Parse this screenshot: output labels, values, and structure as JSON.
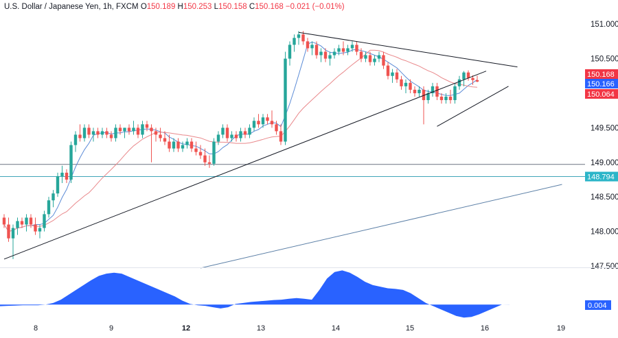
{
  "header": {
    "symbol": "U.S. Dollar / Japanese Yen, 1h, FXCM",
    "o_label": "O",
    "o_value": "150.189",
    "h_label": "H",
    "h_value": "150.253",
    "l_label": "L",
    "l_value": "150.158",
    "c_label": "C",
    "c_value": "150.168",
    "change": "−0.021 (−0.01%)"
  },
  "colors": {
    "up": "#26a69a",
    "down": "#ef5350",
    "ma_fast": "#5b8bd6",
    "ma_slow": "#e9888b",
    "level_line": "#6b7280",
    "level_line2": "#3fa5b8",
    "oscillator": "#2962ff",
    "tag_red": "#f23645",
    "tag_blue": "#2962ff",
    "tag_cyan": "#2cb5c8"
  },
  "chart_data": {
    "type": "candlestick",
    "price_axis": {
      "ticks": [
        "151.000",
        "150.500",
        "150.000",
        "149.500",
        "149.000",
        "148.500",
        "148.000",
        "147.500"
      ],
      "range": [
        147.5,
        151.15
      ]
    },
    "time_axis": {
      "ticks": [
        {
          "label": "8",
          "bold": false
        },
        {
          "label": "9",
          "bold": false
        },
        {
          "label": "12",
          "bold": true
        },
        {
          "label": "13",
          "bold": false
        },
        {
          "label": "14",
          "bold": false
        },
        {
          "label": "15",
          "bold": false
        },
        {
          "label": "16",
          "bold": false
        },
        {
          "label": "19",
          "bold": false
        }
      ]
    },
    "price_tags": [
      {
        "text": "150.168",
        "price": 150.168,
        "color": "tag_red"
      },
      {
        "text": "150.166",
        "price": 150.166,
        "color": "tag_blue"
      },
      {
        "text": "150.064",
        "price": 150.064,
        "color": "tag_red"
      },
      {
        "text": "148.794",
        "price": 148.794,
        "color": "tag_cyan"
      }
    ],
    "horizontal_levels": [
      {
        "price": 148.97,
        "color": "level_line"
      },
      {
        "price": 148.794,
        "color": "level_line2"
      }
    ],
    "oscillator": {
      "value_label": "0.004",
      "values": [
        -0.05,
        -0.04,
        -0.03,
        -0.02,
        -0.02,
        -0.02,
        0,
        0.05,
        0.15,
        0.3,
        0.45,
        0.6,
        0.75,
        0.88,
        0.95,
        0.98,
        0.95,
        0.85,
        0.75,
        0.65,
        0.55,
        0.45,
        0.35,
        0.25,
        0.12,
        0.02,
        -0.02,
        -0.04,
        -0.08,
        -0.12,
        -0.08,
        0.02,
        0.05,
        0.08,
        0.1,
        0.12,
        0.14,
        0.15,
        0.18,
        0.2,
        0.18,
        0.15,
        0.45,
        0.8,
        1.0,
        1.05,
        0.98,
        0.85,
        0.7,
        0.6,
        0.55,
        0.5,
        0.48,
        0.45,
        0.35,
        0.2,
        0.05,
        -0.05,
        -0.15,
        -0.25,
        -0.35,
        -0.4,
        -0.38,
        -0.3,
        -0.2,
        -0.1,
        0,
        0.004
      ],
      "range": [
        -0.5,
        1.1
      ]
    },
    "candles": [
      [
        148.2,
        148.25,
        148.05,
        148.1
      ],
      [
        148.1,
        148.2,
        147.85,
        147.9
      ],
      [
        147.9,
        148.1,
        147.6,
        148.05
      ],
      [
        148.05,
        148.2,
        147.95,
        148.15
      ],
      [
        148.15,
        148.2,
        148.05,
        148.1
      ],
      [
        148.1,
        148.25,
        148.0,
        148.2
      ],
      [
        148.2,
        148.25,
        148.05,
        148.1
      ],
      [
        148.1,
        148.2,
        147.95,
        148.0
      ],
      [
        148.0,
        148.1,
        147.9,
        148.05
      ],
      [
        148.05,
        148.3,
        148.0,
        148.25
      ],
      [
        148.25,
        148.5,
        148.2,
        148.45
      ],
      [
        148.45,
        148.6,
        148.35,
        148.55
      ],
      [
        148.55,
        148.85,
        148.5,
        148.8
      ],
      [
        148.8,
        148.95,
        148.7,
        148.85
      ],
      [
        148.85,
        148.9,
        148.7,
        148.75
      ],
      [
        148.75,
        149.3,
        148.7,
        149.25
      ],
      [
        149.25,
        149.45,
        149.15,
        149.4
      ],
      [
        149.4,
        149.55,
        149.3,
        149.35
      ],
      [
        149.35,
        149.55,
        149.3,
        149.5
      ],
      [
        149.5,
        149.55,
        149.35,
        149.4
      ],
      [
        149.4,
        149.5,
        149.3,
        149.45
      ],
      [
        149.45,
        149.5,
        149.35,
        149.4
      ],
      [
        149.4,
        149.5,
        149.35,
        149.45
      ],
      [
        149.45,
        149.5,
        149.35,
        149.4
      ],
      [
        149.4,
        149.45,
        149.3,
        149.35
      ],
      [
        149.35,
        149.55,
        149.3,
        149.5
      ],
      [
        149.5,
        149.55,
        149.4,
        149.45
      ],
      [
        149.45,
        149.5,
        149.35,
        149.5
      ],
      [
        149.5,
        149.55,
        149.4,
        149.45
      ],
      [
        149.45,
        149.6,
        149.4,
        149.5
      ],
      [
        149.5,
        149.55,
        149.35,
        149.4
      ],
      [
        149.4,
        149.6,
        149.35,
        149.55
      ],
      [
        149.55,
        149.6,
        149.45,
        149.5
      ],
      [
        149.5,
        149.55,
        149.0,
        149.45
      ],
      [
        149.45,
        149.5,
        149.3,
        149.4
      ],
      [
        149.4,
        149.5,
        149.3,
        149.35
      ],
      [
        149.35,
        149.45,
        149.25,
        149.3
      ],
      [
        149.3,
        149.4,
        149.15,
        149.2
      ],
      [
        149.2,
        149.35,
        149.15,
        149.3
      ],
      [
        149.3,
        149.35,
        149.15,
        149.2
      ],
      [
        149.2,
        149.3,
        149.15,
        149.25
      ],
      [
        149.25,
        149.35,
        149.2,
        149.3
      ],
      [
        149.3,
        149.35,
        149.15,
        149.2
      ],
      [
        149.2,
        149.3,
        149.1,
        149.15
      ],
      [
        149.15,
        149.25,
        149.05,
        149.1
      ],
      [
        149.1,
        149.2,
        148.95,
        149.0
      ],
      [
        149.0,
        149.1,
        148.92,
        148.98
      ],
      [
        148.98,
        149.35,
        148.95,
        149.3
      ],
      [
        149.3,
        149.45,
        149.25,
        149.4
      ],
      [
        149.4,
        149.55,
        149.35,
        149.5
      ],
      [
        149.5,
        149.55,
        149.3,
        149.35
      ],
      [
        149.35,
        149.45,
        149.3,
        149.4
      ],
      [
        149.4,
        149.45,
        149.3,
        149.35
      ],
      [
        149.35,
        149.5,
        149.3,
        149.45
      ],
      [
        149.45,
        149.5,
        149.35,
        149.4
      ],
      [
        149.4,
        149.55,
        149.35,
        149.5
      ],
      [
        149.5,
        149.65,
        149.45,
        149.6
      ],
      [
        149.6,
        149.7,
        149.5,
        149.55
      ],
      [
        149.55,
        149.7,
        149.5,
        149.65
      ],
      [
        149.65,
        149.7,
        149.55,
        149.6
      ],
      [
        149.6,
        149.75,
        149.5,
        149.55
      ],
      [
        149.55,
        149.6,
        149.4,
        149.45
      ],
      [
        149.45,
        149.55,
        149.25,
        149.3
      ],
      [
        149.3,
        150.6,
        149.25,
        150.5
      ],
      [
        150.5,
        150.75,
        150.4,
        150.7
      ],
      [
        150.7,
        150.85,
        150.6,
        150.8
      ],
      [
        150.8,
        150.9,
        150.7,
        150.85
      ],
      [
        150.85,
        150.9,
        150.7,
        150.75
      ],
      [
        150.75,
        150.8,
        150.6,
        150.65
      ],
      [
        150.65,
        150.75,
        150.55,
        150.7
      ],
      [
        150.7,
        150.75,
        150.5,
        150.55
      ],
      [
        150.55,
        150.65,
        150.45,
        150.6
      ],
      [
        150.6,
        150.65,
        150.45,
        150.5
      ],
      [
        150.5,
        150.6,
        150.4,
        150.55
      ],
      [
        150.55,
        150.65,
        150.5,
        150.6
      ],
      [
        150.6,
        150.7,
        150.55,
        150.65
      ],
      [
        150.65,
        150.75,
        150.55,
        150.6
      ],
      [
        150.6,
        150.7,
        150.55,
        150.65
      ],
      [
        150.65,
        150.75,
        150.6,
        150.7
      ],
      [
        150.7,
        150.75,
        150.55,
        150.6
      ],
      [
        150.6,
        150.65,
        150.45,
        150.5
      ],
      [
        150.5,
        150.6,
        150.45,
        150.55
      ],
      [
        150.55,
        150.6,
        150.4,
        150.45
      ],
      [
        150.45,
        150.55,
        150.4,
        150.5
      ],
      [
        150.5,
        150.6,
        150.45,
        150.55
      ],
      [
        150.55,
        150.6,
        150.35,
        150.4
      ],
      [
        150.4,
        150.45,
        150.2,
        150.25
      ],
      [
        150.25,
        150.35,
        150.15,
        150.3
      ],
      [
        150.3,
        150.35,
        150.15,
        150.2
      ],
      [
        150.2,
        150.25,
        150.05,
        150.1
      ],
      [
        150.1,
        150.2,
        150.0,
        150.15
      ],
      [
        150.15,
        150.2,
        150.0,
        150.05
      ],
      [
        150.05,
        150.1,
        149.95,
        150.0
      ],
      [
        150.0,
        150.1,
        149.95,
        150.05
      ],
      [
        150.05,
        150.1,
        149.55,
        149.9
      ],
      [
        149.9,
        150.05,
        149.85,
        150.0
      ],
      [
        150.0,
        150.15,
        149.95,
        150.1
      ],
      [
        150.1,
        150.15,
        149.9,
        149.95
      ],
      [
        149.95,
        150.0,
        149.85,
        149.9
      ],
      [
        149.9,
        150.0,
        149.85,
        149.95
      ],
      [
        149.95,
        150.05,
        149.85,
        149.9
      ],
      [
        149.9,
        150.15,
        149.85,
        150.1
      ],
      [
        150.1,
        150.25,
        150.05,
        150.2
      ],
      [
        150.2,
        150.32,
        150.1,
        150.3
      ],
      [
        150.3,
        150.33,
        150.18,
        150.22
      ],
      [
        150.22,
        150.26,
        150.12,
        150.19
      ],
      [
        150.189,
        150.253,
        150.158,
        150.168
      ]
    ],
    "trendlines": [
      {
        "name": "lower-trendline",
        "points": [
          [
            0,
            147.6
          ],
          [
            108,
            150.32
          ]
        ]
      },
      {
        "name": "upper-trendline",
        "points": [
          [
            66,
            150.88
          ],
          [
            115,
            150.38
          ]
        ]
      },
      {
        "name": "wedge-support",
        "points": [
          [
            97,
            149.52
          ],
          [
            113,
            150.1
          ]
        ]
      },
      {
        "name": "long-support",
        "points": [
          [
            44,
            147.47
          ],
          [
            125,
            148.68
          ]
        ]
      }
    ]
  }
}
